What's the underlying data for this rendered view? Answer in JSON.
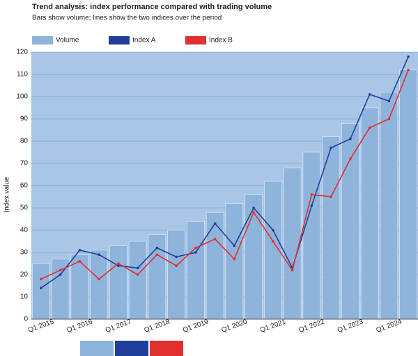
{
  "chart_data": {
    "type": "bar-line",
    "title": "Trend analysis: index performance compared with trading volume",
    "subtitle": "Bars show volume; lines show the two indices over the period",
    "y_label": "Index value",
    "categories": [
      "Q1 2015",
      null,
      "Q1 2016",
      null,
      "Q1 2017",
      null,
      "Q1 2018",
      null,
      "Q1 2019",
      null,
      "Q1 2020",
      null,
      "Q1 2021",
      null,
      "Q1 2022",
      null,
      "Q1 2023",
      null,
      "Q1 2024",
      null
    ],
    "ylim": [
      0,
      120
    ],
    "yticks": [
      0,
      10,
      20,
      30,
      40,
      50,
      60,
      70,
      80,
      90,
      100,
      110,
      120
    ],
    "grid": true,
    "series": [
      {
        "name": "Volume",
        "kind": "bar",
        "color": "#8fb4dc",
        "values": [
          25,
          27,
          29,
          31,
          33,
          35,
          38,
          40,
          44,
          48,
          52,
          56,
          62,
          68,
          75,
          82,
          88,
          95,
          102,
          112
        ]
      },
      {
        "name": "Index A",
        "kind": "line",
        "color": "#1f3f9a",
        "values": [
          14,
          20,
          31,
          29,
          24,
          23,
          32,
          28,
          30,
          43,
          33,
          50,
          40,
          23,
          51,
          77,
          81,
          101,
          98,
          118
        ]
      },
      {
        "name": "Index B",
        "kind": "line",
        "color": "#e03030",
        "values": [
          18,
          22,
          26,
          18,
          25,
          20,
          29,
          24,
          32,
          36,
          27,
          48,
          35,
          22,
          56,
          55,
          72,
          86,
          90,
          112
        ]
      }
    ]
  }
}
